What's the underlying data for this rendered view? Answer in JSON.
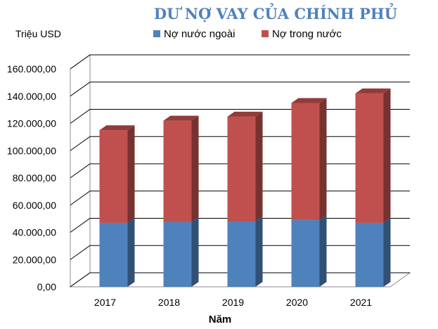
{
  "chart_data": {
    "type": "bar",
    "stacked": true,
    "three_d": true,
    "title": "DƯ NỢ VAY CỦA CHÍNH PHỦ",
    "unit_label": "Triệu USD",
    "xlabel": "Năm",
    "ylabel": "",
    "categories": [
      "2017",
      "2018",
      "2019",
      "2020",
      "2021"
    ],
    "ylim": [
      0,
      160000
    ],
    "yticks": [
      0,
      20000,
      40000,
      60000,
      80000,
      100000,
      120000,
      140000,
      160000
    ],
    "ytick_labels": [
      "0,00",
      "20.000,00",
      "40.000,00",
      "60.000,00",
      "80.000,00",
      "100.000,00",
      "120.000,00",
      "140.000,00",
      "160.000,00"
    ],
    "grid": true,
    "legend_position": "top",
    "series": [
      {
        "name": "Nợ nước ngoài",
        "color": "#4f81bd",
        "values": [
          47000,
          47500,
          48000,
          49000,
          47000
        ]
      },
      {
        "name": "Nợ trong nước",
        "color": "#c0504d",
        "values": [
          68000,
          74500,
          77000,
          86000,
          95000
        ]
      }
    ]
  }
}
